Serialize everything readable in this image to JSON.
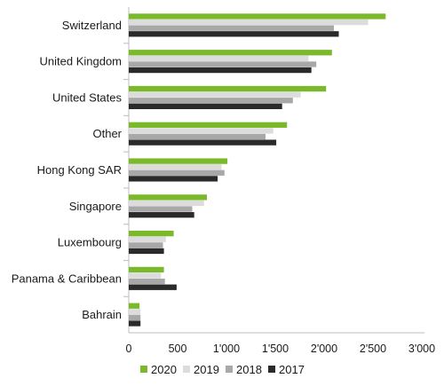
{
  "chart_data": {
    "type": "bar",
    "orientation": "horizontal",
    "categories": [
      "Switzerland",
      "United Kingdom",
      "United States",
      "Other",
      "Hong Kong SAR",
      "Singapore",
      "Luxembourg",
      "Panama & Caribbean",
      "Bahrain"
    ],
    "series": [
      {
        "name": "2020",
        "color": "#7ab929",
        "values": [
          2630,
          2080,
          2020,
          1620,
          1010,
          800,
          460,
          360,
          110
        ]
      },
      {
        "name": "2019",
        "color": "#dcdcdc",
        "values": [
          2450,
          1840,
          1760,
          1480,
          950,
          770,
          380,
          330,
          120
        ]
      },
      {
        "name": "2018",
        "color": "#a8a8a8",
        "values": [
          2100,
          1920,
          1680,
          1400,
          980,
          650,
          350,
          370,
          120
        ]
      },
      {
        "name": "2017",
        "color": "#2a2a2a",
        "values": [
          2150,
          1870,
          1570,
          1510,
          910,
          670,
          360,
          490,
          120
        ]
      }
    ],
    "x_ticks": [
      "0",
      "500",
      "1'000",
      "1'500",
      "2'000",
      "2'500",
      "3'000"
    ],
    "x_tick_values": [
      0,
      500,
      1000,
      1500,
      2000,
      2500,
      3000
    ],
    "xlim": [
      0,
      3000
    ],
    "title": "",
    "xlabel": "",
    "ylabel": "",
    "grid": false,
    "legend": {
      "position": "bottom"
    }
  }
}
